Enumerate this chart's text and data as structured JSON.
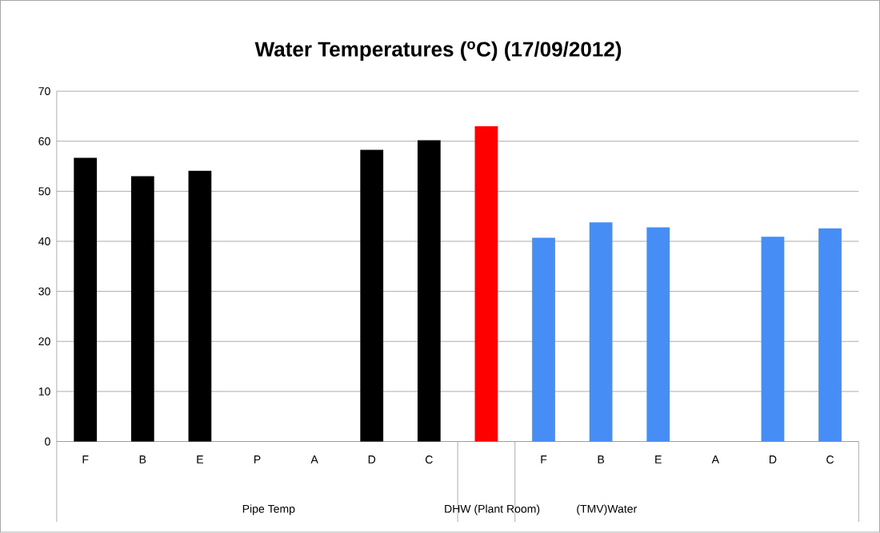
{
  "chart_data": {
    "type": "bar",
    "title": "Water Temperatures ($^{o}$C) (17/09/2012)",
    "categories": [
      "F",
      "B",
      "E",
      "P",
      "A",
      "D",
      "C",
      null,
      "F",
      "B",
      "E",
      "A",
      "D",
      "C"
    ],
    "values": [
      56.7,
      53.0,
      54.1,
      null,
      null,
      58.3,
      60.2,
      63.0,
      40.7,
      43.8,
      42.8,
      null,
      40.9,
      42.6
    ],
    "colors": [
      "#000000",
      "#000000",
      "#000000",
      "#000000",
      "#000000",
      "#000000",
      "#000000",
      "#ff0000",
      "#468ef6",
      "#468ef6",
      "#468ef6",
      "#468ef6",
      "#468ef6",
      "#468ef6"
    ],
    "ylim": [
      0,
      70
    ],
    "yticks": [
      0,
      10,
      20,
      30,
      40,
      50,
      60,
      70
    ],
    "grid": "y",
    "annotations": [
      "Pipe Temp",
      "DHW (Plant Room)",
      "(TMV)Water"
    ]
  }
}
